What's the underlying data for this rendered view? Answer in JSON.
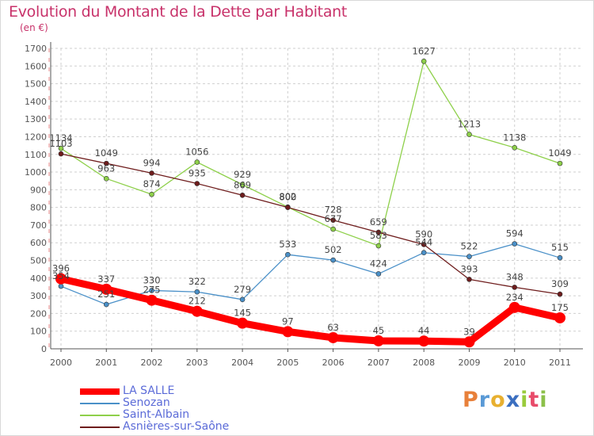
{
  "header": {
    "title": "Evolution du Montant de la Dette par Habitant",
    "subtitle": "(en €)"
  },
  "colors": {
    "title": "#c8326a",
    "axis": "#555555",
    "grid": "#cfcfcf",
    "legend_text": "#5b6bd8"
  },
  "chart_data": {
    "type": "line",
    "title": "Evolution du Montant de la Dette par Habitant",
    "subtitle": "(en €)",
    "xlabel": "",
    "ylabel": "",
    "ylim": [
      0,
      1700
    ],
    "yticks": [
      0,
      100,
      200,
      300,
      400,
      500,
      600,
      700,
      800,
      900,
      1000,
      1100,
      1200,
      1300,
      1400,
      1500,
      1600,
      1700
    ],
    "categories": [
      "2000",
      "2001",
      "2002",
      "2003",
      "2004",
      "2005",
      "2006",
      "2007",
      "2008",
      "2009",
      "2010",
      "2011"
    ],
    "grid": true,
    "legend_position": "bottom-left",
    "series": [
      {
        "name": "LA SALLE",
        "color": "#ff0000",
        "values": [
          396,
          337,
          275,
          212,
          145,
          97,
          63,
          45,
          44,
          39,
          234,
          175
        ]
      },
      {
        "name": "Senozan",
        "color": "#4a90c8",
        "values": [
          354,
          251,
          330,
          322,
          279,
          533,
          502,
          424,
          544,
          522,
          594,
          515
        ]
      },
      {
        "name": "Saint-Albain",
        "color": "#8ed04a",
        "values": [
          1134,
          963,
          874,
          1056,
          929,
          802,
          677,
          583,
          1627,
          1213,
          1138,
          1049
        ]
      },
      {
        "name": "Asnières-sur-Saône",
        "color": "#6e1c1c",
        "values": [
          1103,
          1049,
          994,
          935,
          869,
          800,
          728,
          659,
          590,
          393,
          348,
          309
        ]
      }
    ]
  },
  "legend": {
    "items": [
      {
        "label": "LA SALLE",
        "color": "#ff0000"
      },
      {
        "label": "Senozan",
        "color": "#4a90c8"
      },
      {
        "label": "Saint-Albain",
        "color": "#8ed04a"
      },
      {
        "label": "Asnières-sur-Saône",
        "color": "#6e1c1c"
      }
    ]
  },
  "logo": {
    "letters": [
      "P",
      "r",
      "o",
      "x",
      "i",
      "t",
      "i"
    ],
    "colors": [
      "#e8803a",
      "#5a9ad6",
      "#e8b030",
      "#3b6fc0",
      "#9acb3c",
      "#e84b6a",
      "#8cc04a"
    ]
  }
}
